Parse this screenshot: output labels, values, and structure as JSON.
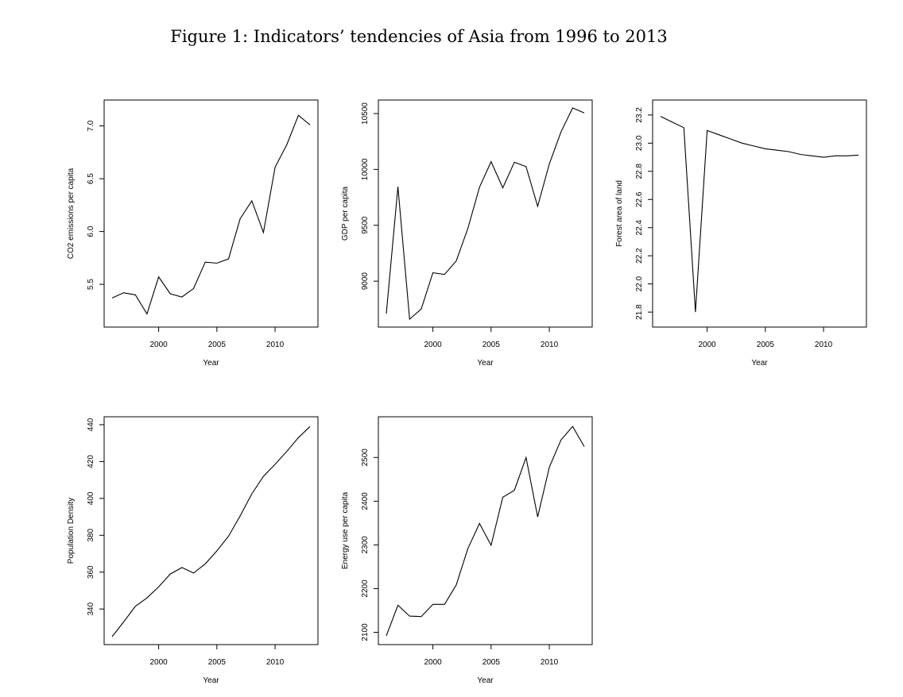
{
  "figure_title": "Figure 1: Indicators’ tendencies of Asia from 1996 to 2013",
  "chart_data": [
    {
      "type": "line",
      "xlabel": "Year",
      "ylabel": "CO2 emissions per capita",
      "x": [
        1996,
        1997,
        1998,
        1999,
        2000,
        2001,
        2002,
        2003,
        2004,
        2005,
        2006,
        2007,
        2008,
        2009,
        2010,
        2011,
        2012,
        2013
      ],
      "y": [
        5.37,
        5.42,
        5.4,
        5.22,
        5.57,
        5.41,
        5.38,
        5.46,
        5.71,
        5.7,
        5.74,
        6.12,
        6.29,
        5.99,
        6.61,
        6.82,
        7.1,
        7.01
      ],
      "xticks": [
        2000,
        2005,
        2010
      ],
      "yticks": [
        5.5,
        6.0,
        6.5,
        7.0
      ],
      "ytick_labels": [
        "5.5",
        "6.0",
        "6.5",
        "7.0"
      ],
      "ylim": [
        5.17,
        7.17
      ]
    },
    {
      "type": "line",
      "xlabel": "Year",
      "ylabel": "GDP per capita",
      "x": [
        1996,
        1997,
        1998,
        1999,
        2000,
        2001,
        2002,
        2003,
        2004,
        2005,
        2006,
        2007,
        2008,
        2009,
        2010,
        2011,
        2012,
        2013
      ],
      "y": [
        8710,
        9845,
        8660,
        8750,
        9075,
        9060,
        9180,
        9470,
        9840,
        10070,
        9835,
        10065,
        10025,
        9670,
        10050,
        10335,
        10550,
        10505
      ],
      "xticks": [
        2000,
        2005,
        2010
      ],
      "yticks": [
        9000,
        9500,
        10000,
        10500
      ],
      "ytick_labels": [
        "9000",
        "9500",
        "10000",
        "10500"
      ],
      "ylim": [
        8660,
        10550
      ]
    },
    {
      "type": "line",
      "xlabel": "Year",
      "ylabel": "Forest area of land",
      "x": [
        1996,
        1997,
        1998,
        1999,
        2000,
        2001,
        2002,
        2003,
        2004,
        2005,
        2006,
        2007,
        2008,
        2009,
        2010,
        2011,
        2012,
        2013
      ],
      "y": [
        23.19,
        23.15,
        23.11,
        21.8,
        23.09,
        23.06,
        23.03,
        23.0,
        22.98,
        22.96,
        22.95,
        22.94,
        22.92,
        22.91,
        22.9,
        22.91,
        22.91,
        22.915
      ],
      "xticks": [
        2000,
        2005,
        2010
      ],
      "yticks": [
        21.8,
        22.0,
        22.2,
        22.4,
        22.6,
        22.8,
        23.0,
        23.2
      ],
      "ytick_labels": [
        "21.8",
        "22.0",
        "22.2",
        "22.4",
        "22.6",
        "22.8",
        "23.0",
        "23.2"
      ],
      "ylim": [
        21.75,
        23.25
      ]
    },
    {
      "type": "line",
      "xlabel": "Year",
      "ylabel": "Population Density",
      "x": [
        1996,
        1997,
        1998,
        1999,
        2000,
        2001,
        2002,
        2003,
        2004,
        2005,
        2006,
        2007,
        2008,
        2009,
        2010,
        2011,
        2012,
        2013
      ],
      "y": [
        325,
        333,
        341.5,
        346,
        352,
        359,
        362.5,
        359.5,
        364.5,
        371.5,
        379.5,
        390.5,
        402.5,
        412,
        418.5,
        425.5,
        433,
        439
      ],
      "xticks": [
        2000,
        2005,
        2010
      ],
      "yticks": [
        340,
        360,
        380,
        400,
        420,
        440
      ],
      "ytick_labels": [
        "340",
        "360",
        "380",
        "400",
        "420",
        "440"
      ],
      "ylim": [
        325,
        440
      ]
    },
    {
      "type": "line",
      "xlabel": "Year",
      "ylabel": "Energy use per capita",
      "x": [
        1996,
        1997,
        1998,
        1999,
        2000,
        2001,
        2002,
        2003,
        2004,
        2005,
        2006,
        2007,
        2008,
        2009,
        2010,
        2011,
        2012,
        2013
      ],
      "y": [
        2092,
        2162,
        2137,
        2136,
        2164,
        2164,
        2208,
        2291,
        2349,
        2299,
        2409,
        2425,
        2500,
        2364,
        2478,
        2540,
        2571,
        2525
      ],
      "xticks": [
        2000,
        2005,
        2010
      ],
      "yticks": [
        2100,
        2200,
        2300,
        2400,
        2500
      ],
      "ytick_labels": [
        "2100",
        "2200",
        "2300",
        "2400",
        "2500"
      ],
      "ylim": [
        2090,
        2575
      ]
    }
  ]
}
